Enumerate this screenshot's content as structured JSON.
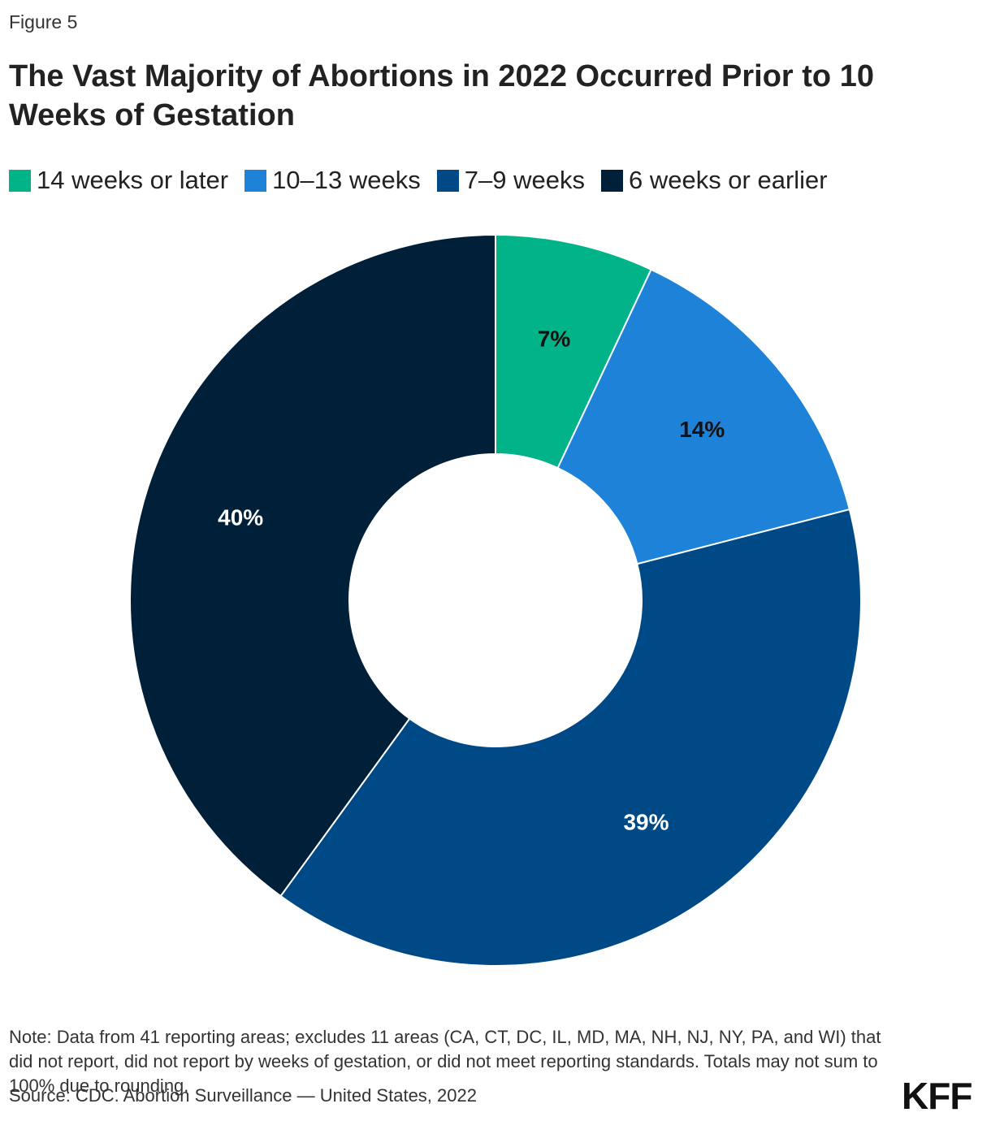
{
  "figure_label": "Figure 5",
  "chart_data": {
    "type": "pie",
    "variant": "donut",
    "title": "The Vast Majority of Abortions in 2022 Occurred Prior to 10 Weeks of Gestation",
    "legend_placement": "top-left",
    "categories": [
      "14 weeks or later",
      "10–13 weeks",
      "7–9 weeks",
      "6 weeks or earlier"
    ],
    "values": [
      7,
      14,
      39,
      40
    ],
    "data_labels": [
      "7%",
      "14%",
      "39%",
      "40%"
    ],
    "colors": [
      "#00b389",
      "#1e83d8",
      "#004987",
      "#001f38"
    ],
    "label_colors": [
      "#111111",
      "#111111",
      "#ffffff",
      "#ffffff"
    ]
  },
  "note": "Note: Data from 41 reporting areas; excludes 11 areas (CA, CT, DC, IL, MD, MA, NH, NJ, NY, PA, and WI) that did not report, did not report by weeks of gestation, or did not meet reporting standards. Totals may not sum to 100% due to rounding.",
  "source": "Source: CDC. Abortion Surveillance — United States, 2022",
  "logo_text": "KFF"
}
